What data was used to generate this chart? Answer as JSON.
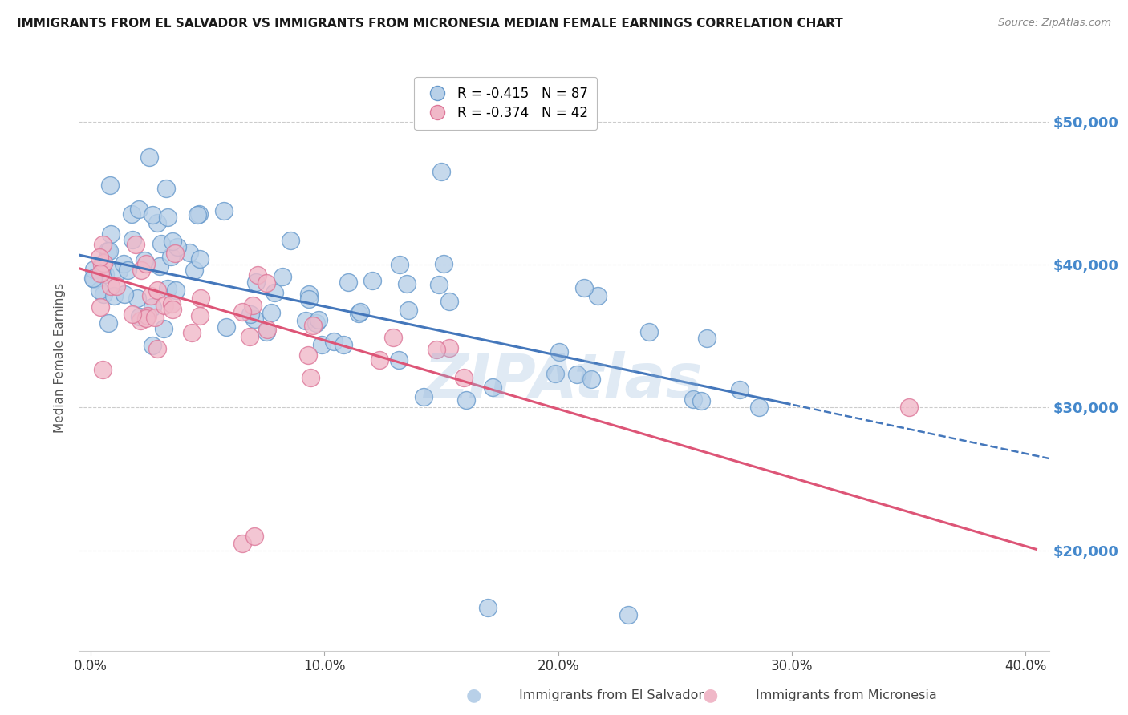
{
  "title": "IMMIGRANTS FROM EL SALVADOR VS IMMIGRANTS FROM MICRONESIA MEDIAN FEMALE EARNINGS CORRELATION CHART",
  "source": "Source: ZipAtlas.com",
  "ylabel": "Median Female Earnings",
  "xlabel_ticks": [
    "0.0%",
    "10.0%",
    "20.0%",
    "30.0%",
    "40.0%"
  ],
  "ylabel_ticks": [
    20000,
    30000,
    40000,
    50000
  ],
  "ylabel_labels": [
    "$20,000",
    "$30,000",
    "$40,000",
    "$50,000"
  ],
  "xlim": [
    -0.5,
    41.0
  ],
  "ylim": [
    13000,
    54000
  ],
  "el_salvador_color": "#b8d0e8",
  "el_salvador_edge": "#6699cc",
  "micronesia_color": "#f0b8c8",
  "micronesia_edge": "#dd7799",
  "trend_blue": "#4477bb",
  "trend_pink": "#dd5577",
  "R_salvador": -0.415,
  "N_salvador": 87,
  "R_micronesia": -0.374,
  "N_micronesia": 42,
  "legend_labels": [
    "Immigrants from El Salvador",
    "Immigrants from Micronesia"
  ],
  "watermark": "ZIPAtlas",
  "background_color": "#ffffff",
  "grid_color": "#cccccc",
  "right_axis_color": "#4488cc"
}
